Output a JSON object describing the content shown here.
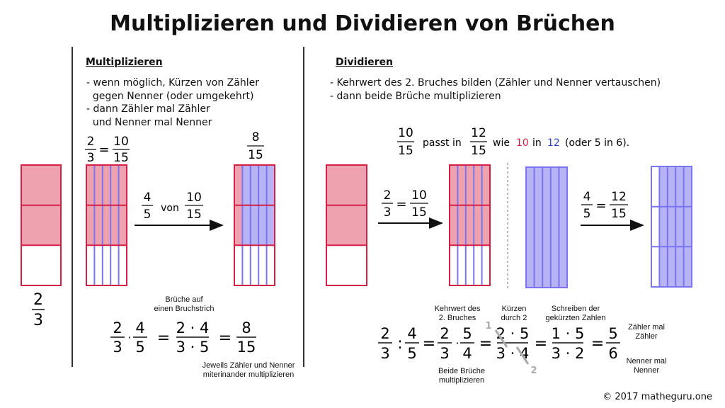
{
  "title": "Multiplizieren und Dividieren von Brüchen",
  "colors": {
    "red": "#d51f45",
    "red_fill": "#eea2b0",
    "blue_line": "#7b74f0",
    "blue_fill": "#b7b3f5",
    "gray": "#aaaaaa"
  },
  "multiplizieren": {
    "heading": "Multiplizieren",
    "rules": "- wenn möglich, Kürzen von Zähler\n  gegen Nenner (oder umgekehrt)\n- dann Zähler mal Zähler\n  und Nenner mal Nenner",
    "frac_left": {
      "num": "2",
      "den": "3"
    },
    "eq_top": {
      "a_num": "2",
      "a_den": "3",
      "eq": "=",
      "b_num": "10",
      "b_den": "15"
    },
    "result_top": {
      "num": "8",
      "den": "15"
    },
    "von_expr": {
      "a_num": "4",
      "a_den": "5",
      "von": "von",
      "b_num": "10",
      "b_den": "15"
    },
    "note_top": "Brüche auf\neinen Bruchstrich",
    "note_bottom": "Jeweils Zähler und Nenner\nmiterinander multiplizieren",
    "formula": {
      "f1_num": "2",
      "f1_den": "3",
      "dot": "·",
      "f2_num": "4",
      "f2_den": "5",
      "eq": "=",
      "f3_num": "2 · 4",
      "f3_den": "3 · 5",
      "f4_num": "8",
      "f4_den": "15"
    }
  },
  "dividieren": {
    "heading": "Dividieren",
    "rules": "- Kehrwert des 2. Bruches bilden (Zähler und Nenner vertauschen)\n- dann beide Brüche multiplizieren",
    "passt": {
      "a_num": "10",
      "a_den": "15",
      "text1": "passt in",
      "b_num": "12",
      "b_den": "15",
      "text2": "wie",
      "v1": "10",
      "text3": "in",
      "v2": "12",
      "text4": "(oder 5 in 6)."
    },
    "eq_mid": {
      "a_num": "2",
      "a_den": "3",
      "eq": "=",
      "b_num": "10",
      "b_den": "15"
    },
    "eq_right": {
      "a_num": "4",
      "a_den": "5",
      "eq": "=",
      "b_num": "12",
      "b_den": "15"
    },
    "labels": {
      "kehrwert": "Kehrwert des\n2. Bruches",
      "kuerzen": "Kürzen\ndurch 2",
      "schreiben": "Schreiben der\ngekürzten Zahlen",
      "zaehler": "Zähler mal\nZähler",
      "nenner": "Nenner mal\nNenner",
      "beide": "Beide Brüche\nmultiplizieren",
      "small_1": "1",
      "small_2": "2"
    },
    "formula": {
      "f1_num": "2",
      "f1_den": "3",
      "colon": ":",
      "f2_num": "4",
      "f2_den": "5",
      "eq": "=",
      "f3_num": "2",
      "f3_den": "3",
      "dot": "·",
      "f4_num": "5",
      "f4_den": "4",
      "f5_num": "2 · 5",
      "f5_den": "3 · 4",
      "f6_num": "1 · 5",
      "f6_den": "3 · 2",
      "f7_num": "5",
      "f7_den": "6"
    }
  },
  "copyright": "© 2017 matheguru.one"
}
